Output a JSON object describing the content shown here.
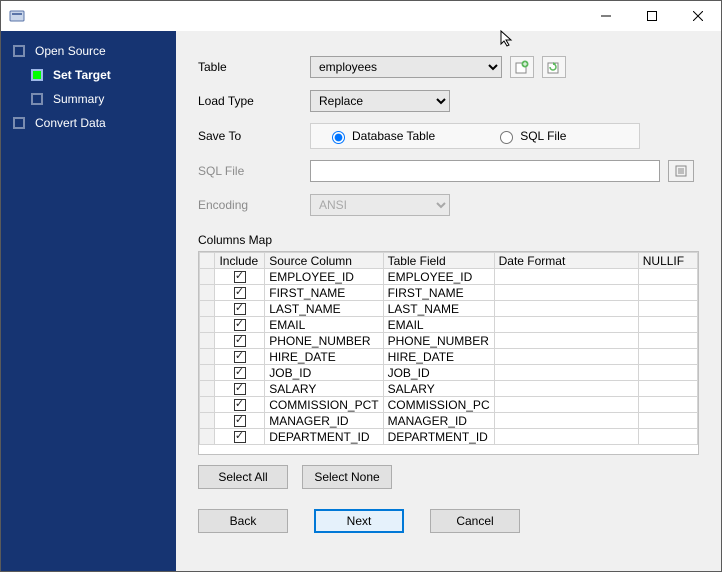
{
  "colors": {
    "sidebar_bg": "#163472",
    "active_step": "#00ff00",
    "window_border": "#5a5a5a",
    "accent": "#0078d7"
  },
  "sidebar": {
    "steps": [
      {
        "label": "Open Source",
        "active": false,
        "child": false
      },
      {
        "label": "Set Target",
        "active": true,
        "child": true
      },
      {
        "label": "Summary",
        "active": false,
        "child": true
      },
      {
        "label": "Convert Data",
        "active": false,
        "child": false
      }
    ]
  },
  "form": {
    "table_label": "Table",
    "table_value": "employees",
    "load_label": "Load Type",
    "load_value": "Replace",
    "saveto_label": "Save To",
    "saveto_opt1": "Database Table",
    "saveto_opt2": "SQL File",
    "saveto_selected": "db",
    "sqlfile_label": "SQL File",
    "sqlfile_value": "",
    "encoding_label": "Encoding",
    "encoding_value": "ANSI"
  },
  "grid": {
    "title": "Columns Map",
    "headers": {
      "include": "Include",
      "source": "Source Column",
      "target": "Table Field",
      "date_format": "Date Format",
      "nullif": "NULLIF"
    },
    "rows": [
      {
        "include": true,
        "source": "EMPLOYEE_ID",
        "target": "EMPLOYEE_ID",
        "date_format": "",
        "nullif": ""
      },
      {
        "include": true,
        "source": "FIRST_NAME",
        "target": "FIRST_NAME",
        "date_format": "",
        "nullif": ""
      },
      {
        "include": true,
        "source": "LAST_NAME",
        "target": "LAST_NAME",
        "date_format": "",
        "nullif": ""
      },
      {
        "include": true,
        "source": "EMAIL",
        "target": "EMAIL",
        "date_format": "",
        "nullif": ""
      },
      {
        "include": true,
        "source": "PHONE_NUMBER",
        "target": "PHONE_NUMBER",
        "date_format": "",
        "nullif": ""
      },
      {
        "include": true,
        "source": "HIRE_DATE",
        "target": "HIRE_DATE",
        "date_format": "",
        "nullif": ""
      },
      {
        "include": true,
        "source": "JOB_ID",
        "target": "JOB_ID",
        "date_format": "",
        "nullif": ""
      },
      {
        "include": true,
        "source": "SALARY",
        "target": "SALARY",
        "date_format": "",
        "nullif": ""
      },
      {
        "include": true,
        "source": "COMMISSION_PCT",
        "target": "COMMISSION_PC",
        "date_format": "",
        "nullif": ""
      },
      {
        "include": true,
        "source": "MANAGER_ID",
        "target": "MANAGER_ID",
        "date_format": "",
        "nullif": ""
      },
      {
        "include": true,
        "source": "DEPARTMENT_ID",
        "target": "DEPARTMENT_ID",
        "date_format": "",
        "nullif": ""
      }
    ]
  },
  "buttons": {
    "select_all": "Select All",
    "select_none": "Select None",
    "back": "Back",
    "next": "Next",
    "cancel": "Cancel"
  }
}
